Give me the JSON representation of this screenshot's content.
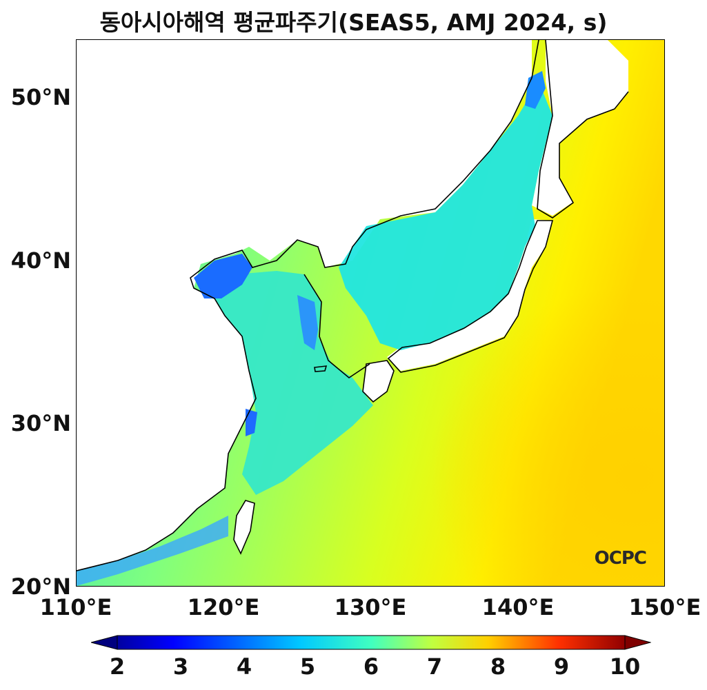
{
  "title": "동아시아해역 평균파주기(SEAS5, AMJ 2024, s)",
  "map": {
    "lon_range": [
      110,
      150
    ],
    "lat_range": [
      20,
      53.5
    ],
    "lat_ticks": [
      "20°N",
      "30°N",
      "40°N",
      "50°N"
    ],
    "lat_tick_values": [
      20,
      30,
      40,
      50
    ],
    "lon_ticks": [
      "110°E",
      "120°E",
      "130°E",
      "140°E",
      "150°E"
    ],
    "lon_tick_values": [
      110,
      120,
      130,
      140,
      150
    ],
    "logo": "OCPC"
  },
  "colorbar": {
    "ticks": [
      "2",
      "3",
      "4",
      "5",
      "6",
      "7",
      "8",
      "9",
      "10"
    ],
    "tick_values": [
      2,
      3,
      4,
      5,
      6,
      7,
      8,
      9,
      10
    ],
    "range": [
      2,
      10
    ],
    "colormap": "jet",
    "extend": "both"
  },
  "colors": {
    "land": "#ffffff",
    "coastline": "#000000",
    "jet_stops": [
      "#00007f",
      "#0000ff",
      "#007fff",
      "#00ffff",
      "#7fff7f",
      "#ffff00",
      "#ff7f00",
      "#ff0000",
      "#7f0000"
    ]
  }
}
